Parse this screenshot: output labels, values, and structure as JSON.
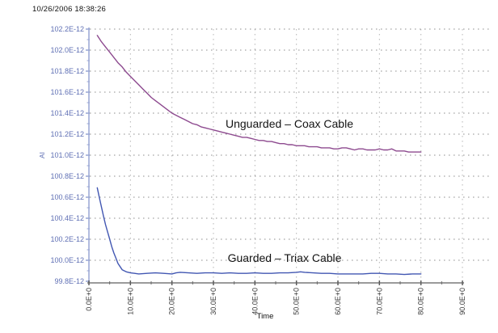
{
  "header": {
    "timestamp": "10/26/2006 18:38:26"
  },
  "colors": {
    "background": "#ffffff",
    "unguarded_line": "#8d4a8f",
    "guarded_line": "#4257b2",
    "y_axis_line": "#99a6d4",
    "y_tick_text": "#5f6fb4",
    "x_axis_line": "#9b9b9b",
    "x_tick_text": "#3a3a3a",
    "h_gridline": "#8c8c8c",
    "v_gridline": "#b4b4b4",
    "annotation_text": "#141414"
  },
  "chart_data": {
    "type": "line",
    "title": "",
    "xlabel": "Time",
    "ylabel": "AI",
    "grid": true,
    "legend": "inline-annotations",
    "y_unit_suffix": "E-12",
    "x_unit_suffix": "E+0",
    "xlim": [
      0,
      90
    ],
    "ylim_E_minus_12": [
      99.8,
      102.2
    ],
    "x_tick_values": [
      0,
      10,
      20,
      30,
      40,
      50,
      60,
      70,
      80,
      90
    ],
    "x_tick_labels": [
      "0.0E+0",
      "10.0E+0",
      "20.0E+0",
      "30.0E+0",
      "40.0E+0",
      "50.0E+0",
      "60.0E+0",
      "70.0E+0",
      "80.0E+0",
      "90.0E+0"
    ],
    "x_minor_tick_values": [
      5,
      15,
      25,
      35,
      45,
      55,
      65,
      75,
      85
    ],
    "y_tick_values": [
      102.2,
      102.0,
      101.8,
      101.6,
      101.4,
      101.2,
      101.0,
      100.8,
      100.6,
      100.4,
      100.2,
      100.0,
      99.8
    ],
    "y_tick_labels": [
      "102.2E-12",
      "102.0E-12",
      "101.8E-12",
      "101.6E-12",
      "101.4E-12",
      "101.2E-12",
      "101.0E-12",
      "100.8E-12",
      "100.6E-12",
      "100.4E-12",
      "100.2E-12",
      "100.0E-12",
      "99.8E-12"
    ],
    "y_minor_tick_values": [
      102.1,
      101.9,
      101.7,
      101.5,
      101.3,
      101.1,
      100.9,
      100.7,
      100.5,
      100.3,
      100.1,
      99.9
    ],
    "series": [
      {
        "name": "Unguarded – Coax Cable",
        "color": "#8d4a8f",
        "label_pos": {
          "x": 358,
          "y": 153
        },
        "unit": "E-12",
        "points": [
          [
            2,
            102.14
          ],
          [
            3,
            102.08
          ],
          [
            4,
            102.03
          ],
          [
            5,
            101.98
          ],
          [
            6,
            101.93
          ],
          [
            7,
            101.88
          ],
          [
            8,
            101.84
          ],
          [
            9,
            101.79
          ],
          [
            10,
            101.75
          ],
          [
            11,
            101.71
          ],
          [
            12,
            101.67
          ],
          [
            13,
            101.63
          ],
          [
            14,
            101.59
          ],
          [
            15,
            101.55
          ],
          [
            16,
            101.52
          ],
          [
            17,
            101.49
          ],
          [
            18,
            101.46
          ],
          [
            19,
            101.43
          ],
          [
            20,
            101.4
          ],
          [
            21,
            101.38
          ],
          [
            22,
            101.36
          ],
          [
            23,
            101.34
          ],
          [
            24,
            101.32
          ],
          [
            25,
            101.3
          ],
          [
            26,
            101.29
          ],
          [
            27,
            101.27
          ],
          [
            28,
            101.26
          ],
          [
            29,
            101.25
          ],
          [
            30,
            101.24
          ],
          [
            31,
            101.23
          ],
          [
            32,
            101.22
          ],
          [
            33,
            101.21
          ],
          [
            34,
            101.2
          ],
          [
            35,
            101.19
          ],
          [
            36,
            101.18
          ],
          [
            37,
            101.17
          ],
          [
            38,
            101.17
          ],
          [
            39,
            101.16
          ],
          [
            40,
            101.15
          ],
          [
            41,
            101.14
          ],
          [
            42,
            101.14
          ],
          [
            43,
            101.13
          ],
          [
            44,
            101.13
          ],
          [
            45,
            101.12
          ],
          [
            46,
            101.11
          ],
          [
            47,
            101.11
          ],
          [
            48,
            101.1
          ],
          [
            49,
            101.1
          ],
          [
            50,
            101.09
          ],
          [
            51,
            101.09
          ],
          [
            52,
            101.09
          ],
          [
            53,
            101.08
          ],
          [
            54,
            101.08
          ],
          [
            55,
            101.08
          ],
          [
            56,
            101.07
          ],
          [
            57,
            101.07
          ],
          [
            58,
            101.07
          ],
          [
            59,
            101.06
          ],
          [
            60,
            101.06
          ],
          [
            61,
            101.07
          ],
          [
            62,
            101.07
          ],
          [
            63,
            101.06
          ],
          [
            64,
            101.05
          ],
          [
            65,
            101.06
          ],
          [
            66,
            101.06
          ],
          [
            67,
            101.05
          ],
          [
            68,
            101.05
          ],
          [
            69,
            101.05
          ],
          [
            70,
            101.06
          ],
          [
            71,
            101.05
          ],
          [
            72,
            101.05
          ],
          [
            73,
            101.06
          ],
          [
            74,
            101.04
          ],
          [
            75,
            101.04
          ],
          [
            76,
            101.04
          ],
          [
            77,
            101.03
          ],
          [
            78,
            101.03
          ],
          [
            79,
            101.03
          ],
          [
            80,
            101.03
          ]
        ]
      },
      {
        "name": "Guarded – Triax Cable",
        "color": "#4257b2",
        "label_pos": {
          "x": 352,
          "y": 319
        },
        "unit": "E-12",
        "points": [
          [
            2,
            100.69
          ],
          [
            2.5,
            100.6
          ],
          [
            3,
            100.51
          ],
          [
            3.5,
            100.42
          ],
          [
            4,
            100.34
          ],
          [
            4.5,
            100.27
          ],
          [
            5,
            100.2
          ],
          [
            5.5,
            100.13
          ],
          [
            6,
            100.07
          ],
          [
            6.5,
            100.02
          ],
          [
            7,
            99.97
          ],
          [
            7.5,
            99.94
          ],
          [
            8,
            99.91
          ],
          [
            8.5,
            99.9
          ],
          [
            9,
            99.89
          ],
          [
            10,
            99.88
          ],
          [
            11,
            99.875
          ],
          [
            12,
            99.87
          ],
          [
            14,
            99.875
          ],
          [
            16,
            99.88
          ],
          [
            18,
            99.875
          ],
          [
            20,
            99.87
          ],
          [
            21,
            99.88
          ],
          [
            22,
            99.885
          ],
          [
            24,
            99.88
          ],
          [
            26,
            99.875
          ],
          [
            28,
            99.88
          ],
          [
            30,
            99.88
          ],
          [
            32,
            99.875
          ],
          [
            34,
            99.88
          ],
          [
            36,
            99.875
          ],
          [
            38,
            99.875
          ],
          [
            40,
            99.88
          ],
          [
            42,
            99.875
          ],
          [
            44,
            99.875
          ],
          [
            46,
            99.88
          ],
          [
            48,
            99.88
          ],
          [
            50,
            99.885
          ],
          [
            51,
            99.89
          ],
          [
            52,
            99.885
          ],
          [
            54,
            99.88
          ],
          [
            56,
            99.875
          ],
          [
            58,
            99.875
          ],
          [
            60,
            99.87
          ],
          [
            62,
            99.87
          ],
          [
            64,
            99.87
          ],
          [
            66,
            99.87
          ],
          [
            68,
            99.875
          ],
          [
            70,
            99.875
          ],
          [
            72,
            99.87
          ],
          [
            74,
            99.87
          ],
          [
            76,
            99.865
          ],
          [
            78,
            99.87
          ],
          [
            80,
            99.87
          ]
        ]
      }
    ]
  }
}
